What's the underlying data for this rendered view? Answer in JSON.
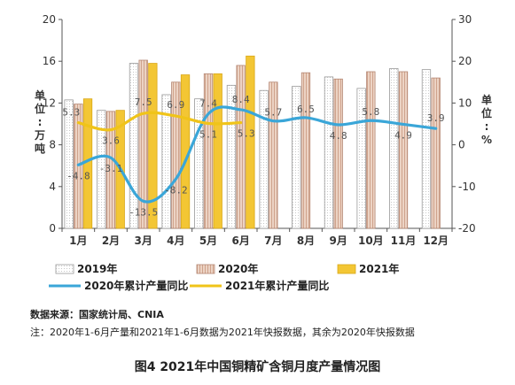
{
  "chart_data": {
    "type": "bar",
    "categories": [
      "1月",
      "2月",
      "3月",
      "4月",
      "5月",
      "6月",
      "7月",
      "8月",
      "9月",
      "10月",
      "11月",
      "12月"
    ],
    "series": [
      {
        "name": "2019年",
        "kind": "bar",
        "axis": "left",
        "color": "#ffffff",
        "values": [
          12.3,
          11.3,
          15.8,
          12.8,
          12.4,
          13.7,
          13.2,
          13.6,
          14.5,
          13.4,
          15.3,
          15.2
        ]
      },
      {
        "name": "2020年",
        "kind": "bar",
        "axis": "left",
        "color": "#e8c9b8",
        "values": [
          11.9,
          11.2,
          16.1,
          14.0,
          14.8,
          15.6,
          14.0,
          14.9,
          14.3,
          15.0,
          15.0,
          14.4
        ]
      },
      {
        "name": "2021年",
        "kind": "bar",
        "axis": "left",
        "color": "#f3c634",
        "values": [
          12.4,
          11.3,
          15.8,
          14.7,
          14.8,
          16.5,
          null,
          null,
          null,
          null,
          null,
          null
        ]
      },
      {
        "name": "2020年累计产量同比",
        "kind": "line",
        "axis": "right",
        "color": "#3aa6d8",
        "values": [
          -4.8,
          -3.1,
          -13.5,
          -8.2,
          7.4,
          8.4,
          5.7,
          6.5,
          4.8,
          5.8,
          4.9,
          3.9
        ]
      },
      {
        "name": "2021年累计产量同比",
        "kind": "line",
        "axis": "right",
        "color": "#f0c419",
        "values": [
          5.3,
          3.6,
          7.5,
          6.9,
          5.1,
          5.3,
          null,
          null,
          null,
          null,
          null,
          null
        ]
      }
    ],
    "data_labels": [
      "5.3",
      "3.6",
      "7.5",
      "6.9",
      "5.1",
      "5.3",
      "-4.8",
      "-3.1",
      "-13.5",
      "-8.2",
      "7.4",
      "8.4",
      "5.7",
      "6.5",
      "4.8",
      "5.8",
      "4.9",
      "3.9"
    ],
    "left_axis": {
      "range": [
        0,
        20
      ],
      "ticks": [
        "0",
        "4",
        "8",
        "12",
        "16",
        "20"
      ],
      "label": [
        "单",
        "位",
        ":",
        "万",
        "吨"
      ]
    },
    "right_axis": {
      "range": [
        -20,
        30
      ],
      "ticks": [
        "-20",
        "-10",
        "0",
        "10",
        "20",
        "30"
      ],
      "label": [
        "单",
        "位",
        ":",
        "%"
      ]
    },
    "grid": false,
    "legend": {
      "position": "bottom",
      "items": [
        "2019年",
        "2020年",
        "2021年",
        "2020年累计产量同比",
        "2021年累计产量同比"
      ]
    }
  },
  "source": {
    "label": "数据来源：国家统计局、CNIA",
    "note": "注：2020年1-6月产量和2021年1-6月数据为2021年快报数据，其余为2020年快报数据"
  },
  "caption": "图4 2021年中国铜精矿含铜月度产量情况图"
}
